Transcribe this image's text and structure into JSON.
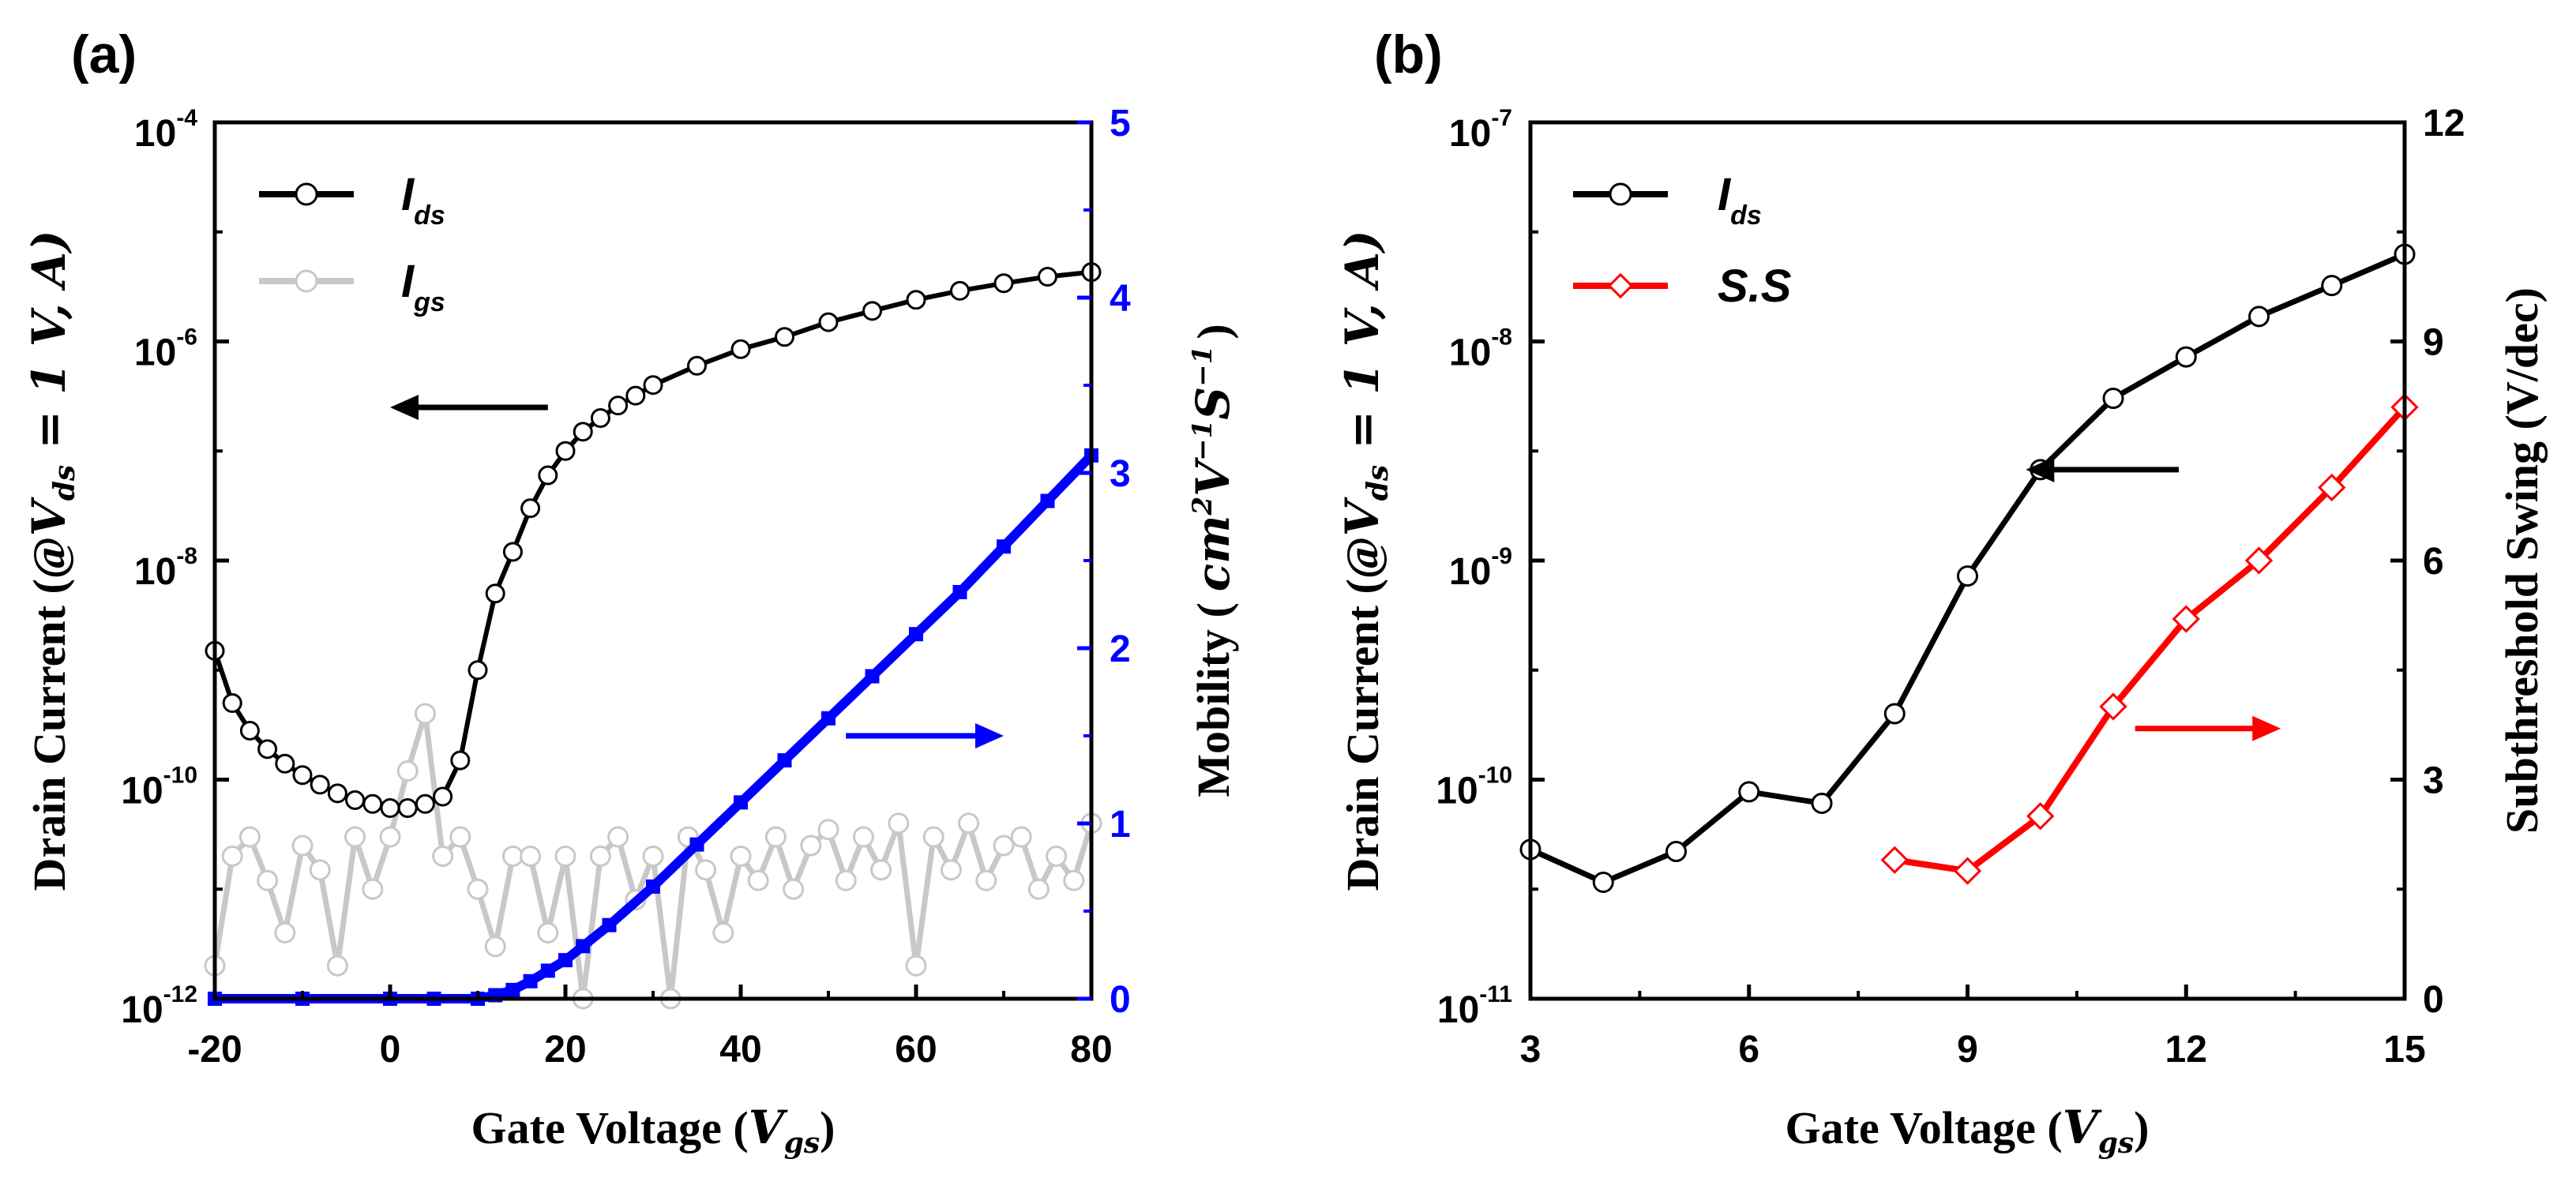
{
  "colors": {
    "ids": "#000000",
    "igs": "#c8c8c8",
    "mobility": "#0000ff",
    "ss": "#ff0000",
    "axis": "#000000"
  },
  "chart_data": [
    {
      "type": "line",
      "panel_label": "(a)",
      "xlabel_main": "Gate Voltage (",
      "xlabel_var": "V",
      "xlabel_sub": "gs",
      "xlabel_close": ")",
      "ylabel_main": "Drain Current (@",
      "ylabel_math": "V",
      "ylabel_math_sub": "ds",
      "ylabel_math_tail": " = 1 V, A)",
      "y2label_main": "Mobility (",
      "y2label_math": "cm",
      "y2label_sup1": "2",
      "y2label_v": "V",
      "y2label_sup2": "−1",
      "y2label_s": "S",
      "y2label_sup3": "−1",
      "y2label_close": ")",
      "xlim": [
        -20,
        80
      ],
      "ylim_log": [
        1e-12,
        0.0001
      ],
      "y2lim": [
        0,
        5
      ],
      "x_ticks": [
        "-20",
        "0",
        "20",
        "40",
        "60",
        "80"
      ],
      "y_ticks": [
        {
          "base": "10",
          "exp": "-12"
        },
        {
          "base": "10",
          "exp": "-10"
        },
        {
          "base": "10",
          "exp": "-8"
        },
        {
          "base": "10",
          "exp": "-6"
        },
        {
          "base": "10",
          "exp": "-4"
        }
      ],
      "y2_ticks": [
        "0",
        "1",
        "2",
        "3",
        "4",
        "5"
      ],
      "legend": [
        {
          "name": "I",
          "sub": "ds",
          "color": "#000000"
        },
        {
          "name": "I",
          "sub": "gs",
          "color": "#c8c8c8"
        }
      ],
      "ids": {
        "x": [
          -20,
          -18,
          -16,
          -14,
          -12,
          -10,
          -8,
          -6,
          -4,
          -2,
          0,
          2,
          4,
          6,
          8,
          10,
          12,
          14,
          16,
          18,
          20,
          22,
          24,
          26,
          28,
          30,
          35,
          40,
          45,
          50,
          55,
          60,
          65,
          70,
          75,
          80
        ],
        "y": [
          1.5e-09,
          5e-10,
          2.8e-10,
          1.9e-10,
          1.4e-10,
          1.1e-10,
          9e-11,
          7.5e-11,
          6.5e-11,
          6e-11,
          5.5e-11,
          5.5e-11,
          6e-11,
          7e-11,
          1.5e-10,
          1e-09,
          5e-09,
          1.2e-08,
          3e-08,
          6e-08,
          1e-07,
          1.5e-07,
          2e-07,
          2.6e-07,
          3.2e-07,
          4e-07,
          6e-07,
          8.5e-07,
          1.1e-06,
          1.5e-06,
          1.9e-06,
          2.4e-06,
          2.9e-06,
          3.4e-06,
          3.9e-06,
          4.3e-06
        ]
      },
      "igs": {
        "x": [
          -20,
          -18,
          -16,
          -14,
          -12,
          -10,
          -8,
          -6,
          -4,
          -2,
          0,
          2,
          4,
          6,
          8,
          10,
          12,
          14,
          16,
          18,
          20,
          22,
          24,
          26,
          28,
          30,
          32,
          34,
          36,
          38,
          40,
          42,
          44,
          46,
          48,
          50,
          52,
          54,
          56,
          58,
          60,
          62,
          64,
          66,
          68,
          70,
          72,
          74,
          76,
          78,
          80
        ],
        "y": [
          2e-12,
          2e-11,
          3e-11,
          1.2e-11,
          4e-12,
          2.5e-11,
          1.5e-11,
          2e-12,
          3e-11,
          1e-11,
          3e-11,
          1.2e-10,
          4e-10,
          2e-11,
          3e-11,
          1e-11,
          3e-12,
          2e-11,
          2e-11,
          4e-12,
          2e-11,
          1e-12,
          2e-11,
          3e-11,
          8e-12,
          2e-11,
          1e-12,
          3e-11,
          1.5e-11,
          4e-12,
          2e-11,
          1.2e-11,
          3e-11,
          1e-11,
          2.5e-11,
          3.5e-11,
          1.2e-11,
          3e-11,
          1.5e-11,
          4e-11,
          2e-12,
          3e-11,
          1.5e-11,
          4e-11,
          1.2e-11,
          2.5e-11,
          3e-11,
          1e-11,
          2e-11,
          1.2e-11,
          4e-11
        ]
      },
      "mobility": {
        "x": [
          -20,
          -10,
          0,
          5,
          10,
          12,
          14,
          16,
          18,
          20,
          22,
          25,
          30,
          35,
          40,
          45,
          50,
          55,
          60,
          65,
          70,
          75,
          80
        ],
        "y": [
          0,
          0,
          0,
          0,
          0,
          0.02,
          0.05,
          0.1,
          0.16,
          0.22,
          0.3,
          0.42,
          0.64,
          0.88,
          1.12,
          1.36,
          1.6,
          1.84,
          2.08,
          2.32,
          2.58,
          2.84,
          3.1
        ]
      },
      "arrows": [
        {
          "target": "left",
          "color": "#000000",
          "x0": 18,
          "x1": 0,
          "y": 2.5e-07
        },
        {
          "target": "right",
          "color": "#0000ff",
          "x0": 52,
          "x1": 70,
          "y2": 1.5
        }
      ]
    },
    {
      "type": "line",
      "panel_label": "(b)",
      "xlabel_main": "Gate Voltage (",
      "xlabel_var": "V",
      "xlabel_sub": "gs",
      "xlabel_close": ")",
      "ylabel_main": "Drain Current (@",
      "ylabel_math": "V",
      "ylabel_math_sub": "ds",
      "ylabel_math_tail": " = 1 V, A)",
      "y2label": "Subthreshold Swing (V/dec)",
      "xlim": [
        3,
        15
      ],
      "ylim_log": [
        1e-11,
        1e-07
      ],
      "y2lim": [
        0,
        12
      ],
      "x_ticks": [
        "3",
        "6",
        "9",
        "12",
        "15"
      ],
      "y_ticks": [
        {
          "base": "10",
          "exp": "-11"
        },
        {
          "base": "10",
          "exp": "-10"
        },
        {
          "base": "10",
          "exp": "-9"
        },
        {
          "base": "10",
          "exp": "-8"
        },
        {
          "base": "10",
          "exp": "-7"
        }
      ],
      "y2_ticks": [
        "0",
        "3",
        "6",
        "9",
        "12"
      ],
      "legend": [
        {
          "name": "I",
          "sub": "ds",
          "color": "#000000"
        },
        {
          "name": "S.S",
          "sub": "",
          "color": "#ff0000"
        }
      ],
      "ids": {
        "x": [
          3,
          4,
          5,
          6,
          7,
          8,
          9,
          10,
          11,
          12,
          13,
          14,
          15
        ],
        "y": [
          4.8e-11,
          3.4e-11,
          4.7e-11,
          8.8e-11,
          7.8e-11,
          2e-10,
          8.5e-10,
          2.6e-09,
          5.5e-09,
          8.5e-09,
          1.3e-08,
          1.8e-08,
          2.5e-08
        ]
      },
      "ss": {
        "x": [
          8,
          9,
          10,
          11,
          12,
          13,
          14,
          15
        ],
        "y": [
          1.9,
          1.75,
          2.5,
          4.0,
          5.2,
          6.0,
          7.0,
          8.1
        ]
      },
      "arrows": [
        {
          "target": "left",
          "color": "#000000",
          "x0": 11.9,
          "x1": 9.8,
          "y": 2.6e-09
        },
        {
          "target": "right",
          "color": "#ff0000",
          "x0": 11.3,
          "x1": 13.3,
          "y2": 3.7
        }
      ]
    }
  ]
}
